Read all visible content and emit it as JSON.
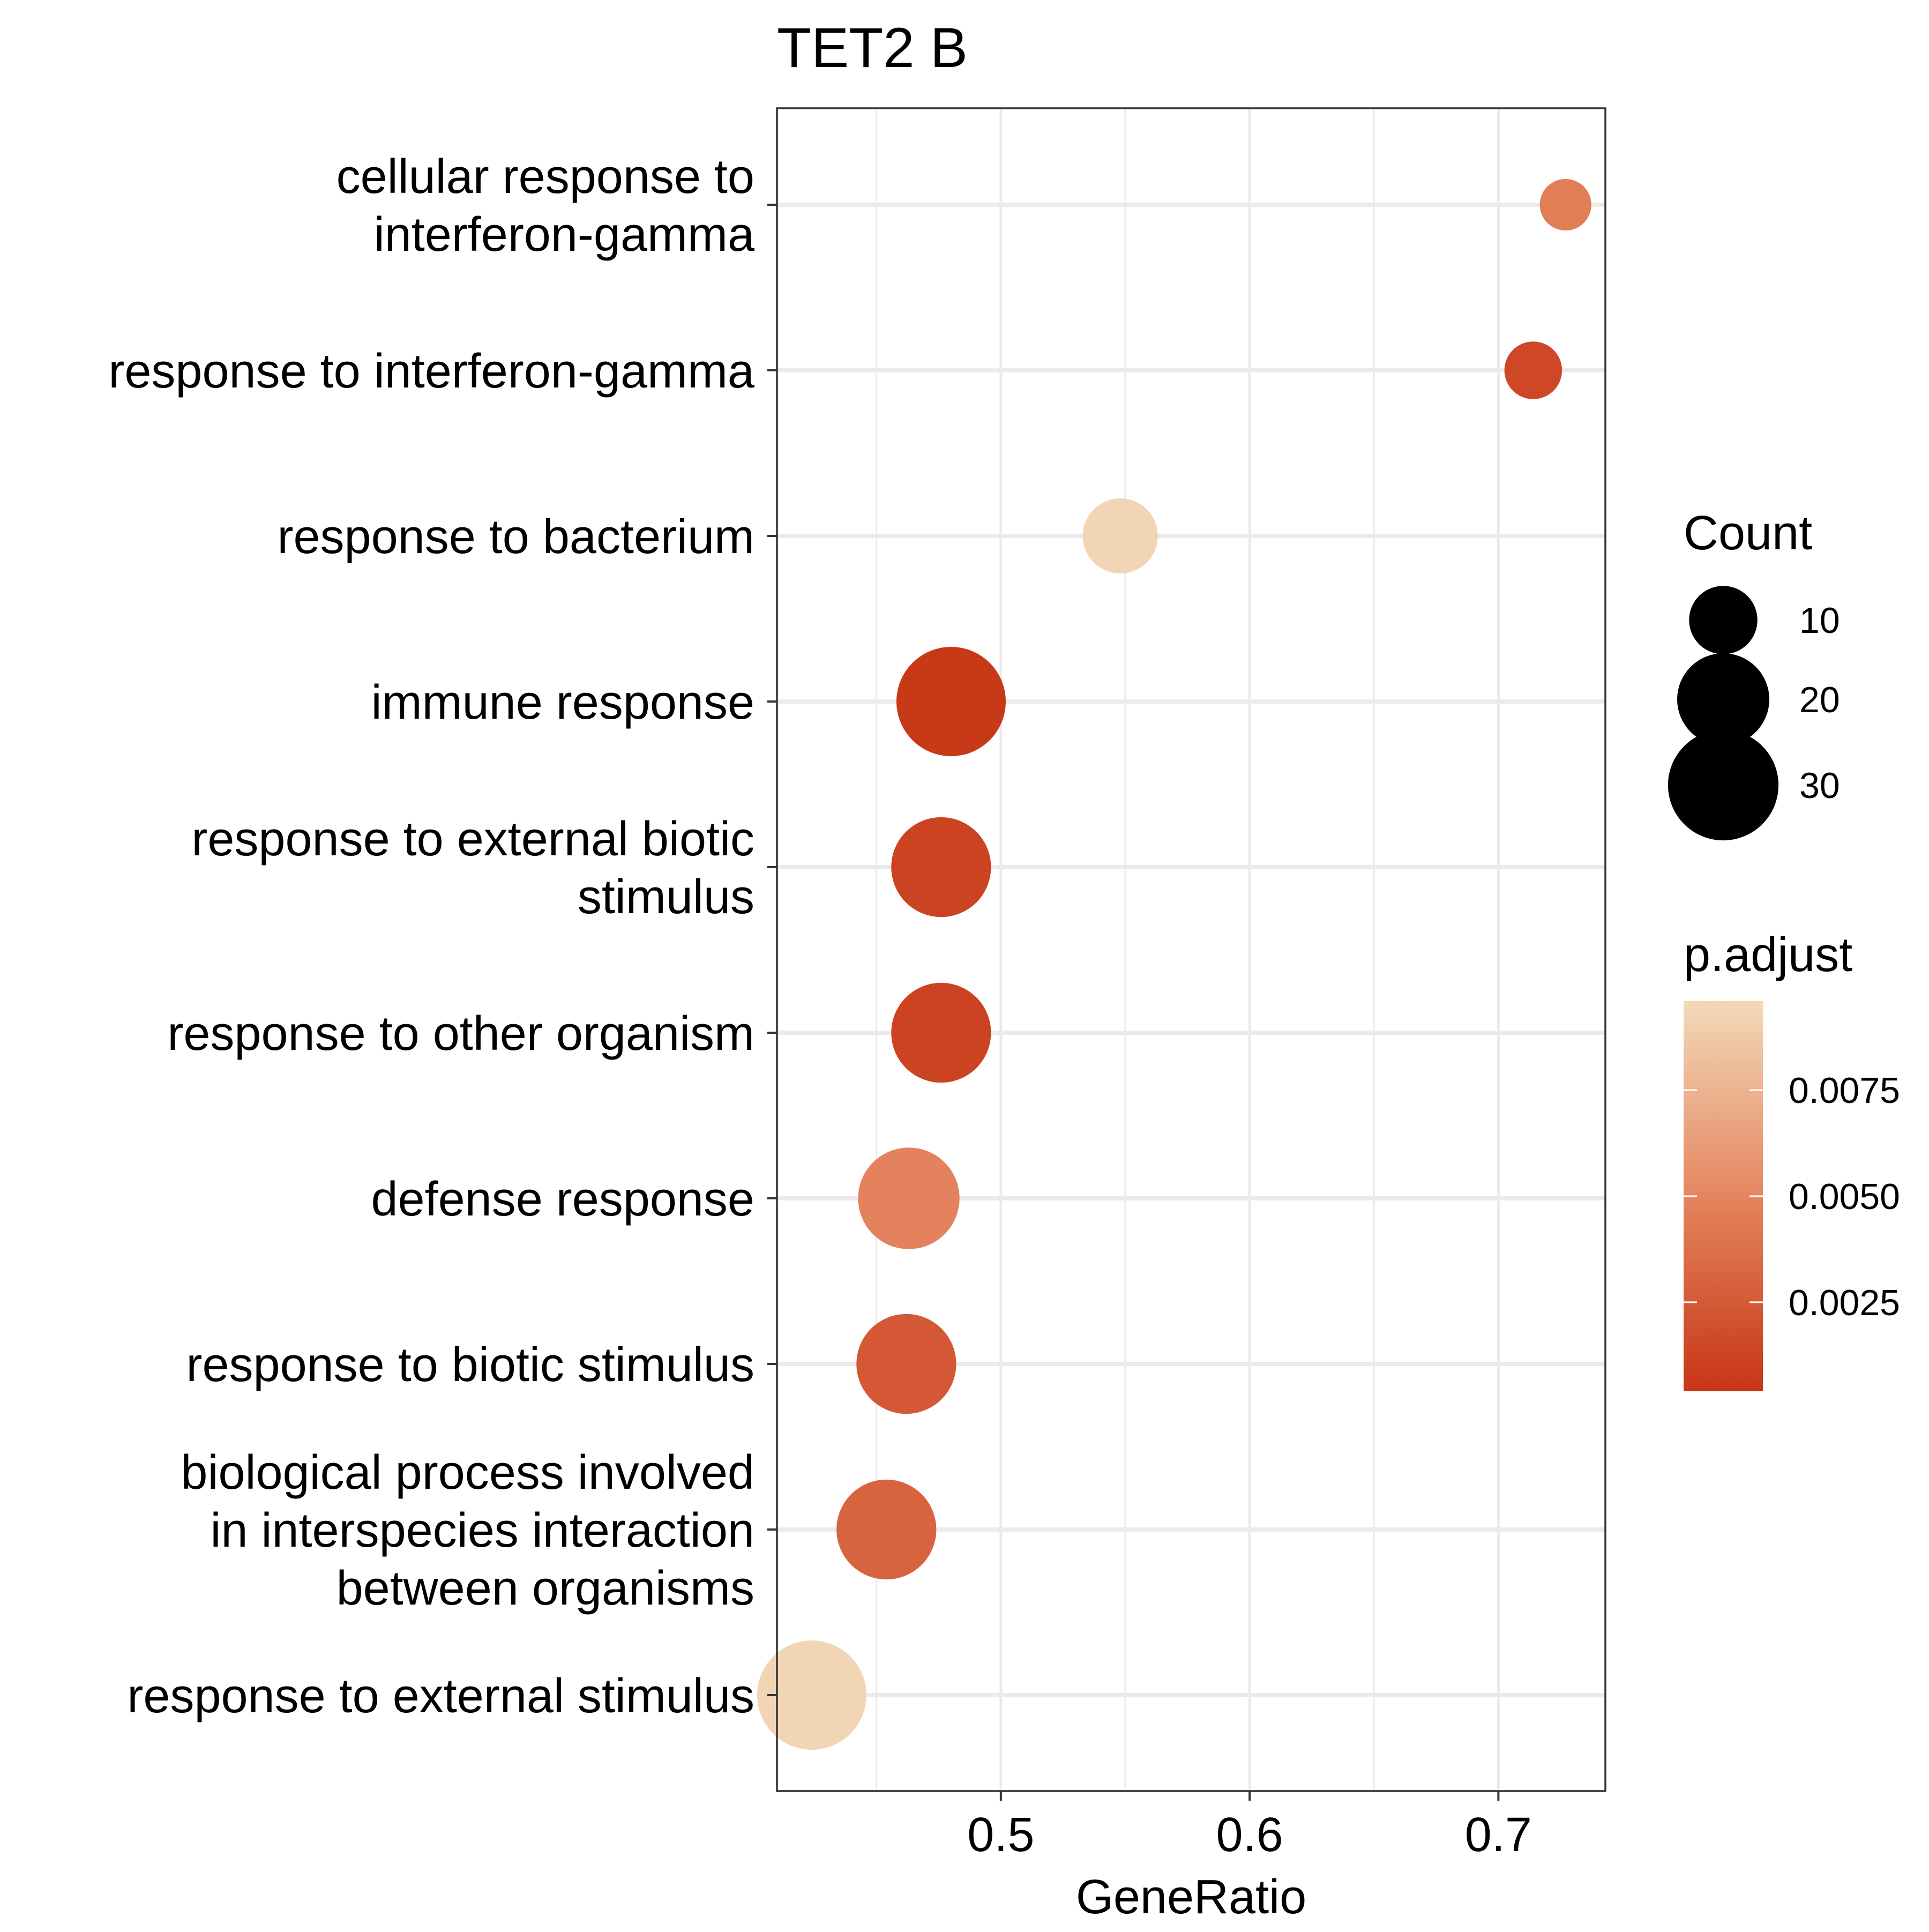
{
  "chart_data": {
    "type": "scatter",
    "title": "TET2 B",
    "xlabel": "GeneRatio",
    "ylabel": "",
    "xlim": [
      0.41,
      0.743
    ],
    "x_ticks": [
      0.5,
      0.6,
      0.7
    ],
    "x_tick_labels": [
      "0.5",
      "0.6",
      "0.7"
    ],
    "grid": true,
    "categories": [
      [
        "cellular response to",
        "interferon-gamma"
      ],
      [
        "response to interferon-gamma"
      ],
      [
        "response to bacterium"
      ],
      [
        "immune response"
      ],
      [
        "response to external biotic",
        "stimulus"
      ],
      [
        "response to other organism"
      ],
      [
        "defense response"
      ],
      [
        "response to biotic stimulus"
      ],
      [
        "biological process involved",
        "in interspecies interaction",
        "between organisms"
      ],
      [
        "response to external stimulus"
      ]
    ],
    "points": [
      {
        "gene_ratio": 0.727,
        "count": 8,
        "p_adjust": 0.0045
      },
      {
        "gene_ratio": 0.714,
        "count": 10,
        "p_adjust": 0.0015
      },
      {
        "gene_ratio": 0.548,
        "count": 17,
        "p_adjust": 0.0094
      },
      {
        "gene_ratio": 0.48,
        "count": 36,
        "p_adjust": 0.0006
      },
      {
        "gene_ratio": 0.476,
        "count": 30,
        "p_adjust": 0.0012
      },
      {
        "gene_ratio": 0.476,
        "count": 30,
        "p_adjust": 0.0012
      },
      {
        "gene_ratio": 0.463,
        "count": 31,
        "p_adjust": 0.0048
      },
      {
        "gene_ratio": 0.462,
        "count": 30,
        "p_adjust": 0.0024
      },
      {
        "gene_ratio": 0.454,
        "count": 30,
        "p_adjust": 0.003
      },
      {
        "gene_ratio": 0.424,
        "count": 36,
        "p_adjust": 0.0094
      }
    ],
    "legend_size": {
      "title": "Count",
      "values": [
        10,
        20,
        30
      ],
      "labels": [
        "10",
        "20",
        "30"
      ]
    },
    "legend_color": {
      "title": "p.adjust",
      "range": [
        0.0004,
        0.0096
      ],
      "ticks": [
        0.0025,
        0.005,
        0.0075
      ],
      "tick_labels": [
        "0.0025",
        "0.0050",
        "0.0075"
      ],
      "low_color": "#c73515",
      "mid_color": "#e4865f",
      "high_color": "#f3d9b9"
    },
    "legend_position": "right"
  }
}
